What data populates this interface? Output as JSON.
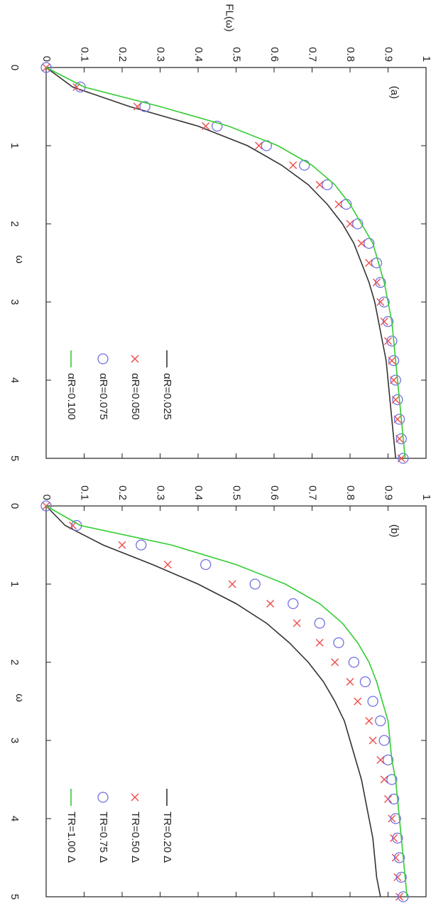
{
  "chart_data": [
    {
      "type": "line",
      "ylabel": "FL(ω)",
      "xlabel": "ω",
      "annotation": "(a)",
      "x": [
        0,
        0.25,
        0.5,
        0.75,
        1,
        1.25,
        1.5,
        1.75,
        2,
        2.25,
        2.5,
        2.75,
        3,
        3.25,
        3.5,
        3.75,
        4,
        4.25,
        4.5,
        4.75,
        5
      ],
      "xlim": [
        0,
        5
      ],
      "ylim": [
        0,
        1
      ],
      "xticks": [
        0,
        1,
        2,
        3,
        4,
        5
      ],
      "yticks": [
        0,
        0.1,
        0.2,
        0.3,
        0.4,
        0.5,
        0.6,
        0.7,
        0.8,
        0.9,
        1
      ],
      "legend": "lower right",
      "series": [
        {
          "name": "αR=0.025",
          "color": "#333333",
          "style": "line",
          "values": [
            0,
            0.07,
            0.22,
            0.4,
            0.53,
            0.62,
            0.69,
            0.74,
            0.78,
            0.81,
            0.83,
            0.85,
            0.865,
            0.875,
            0.885,
            0.895,
            0.9,
            0.905,
            0.91,
            0.915,
            0.92
          ]
        },
        {
          "name": "αR=0.050",
          "color": "#f05050",
          "style": "cross",
          "values": [
            0,
            0.08,
            0.24,
            0.42,
            0.56,
            0.65,
            0.72,
            0.77,
            0.8,
            0.83,
            0.85,
            0.87,
            0.88,
            0.89,
            0.9,
            0.91,
            0.915,
            0.92,
            0.925,
            0.93,
            0.935
          ]
        },
        {
          "name": "αR=0.075",
          "color": "#7070e0",
          "style": "circle",
          "values": [
            0,
            0.09,
            0.26,
            0.45,
            0.58,
            0.68,
            0.74,
            0.79,
            0.82,
            0.85,
            0.87,
            0.88,
            0.89,
            0.9,
            0.91,
            0.915,
            0.92,
            0.925,
            0.93,
            0.935,
            0.94
          ]
        },
        {
          "name": "αR=0.100",
          "color": "#33cc33",
          "style": "line",
          "values": [
            0,
            0.1,
            0.3,
            0.48,
            0.61,
            0.7,
            0.76,
            0.8,
            0.83,
            0.86,
            0.875,
            0.89,
            0.9,
            0.91,
            0.915,
            0.92,
            0.925,
            0.93,
            0.935,
            0.94,
            0.945
          ]
        }
      ]
    },
    {
      "type": "line",
      "xlabel": "ω",
      "annotation": "(b)",
      "x": [
        0,
        0.25,
        0.5,
        0.75,
        1,
        1.25,
        1.5,
        1.75,
        2,
        2.25,
        2.5,
        2.75,
        3,
        3.25,
        3.5,
        3.75,
        4,
        4.25,
        4.5,
        4.75,
        5
      ],
      "xlim": [
        0,
        5
      ],
      "ylim": [
        0,
        1
      ],
      "xticks": [
        0,
        1,
        2,
        3,
        4,
        5
      ],
      "yticks": [
        0,
        0.1,
        0.2,
        0.3,
        0.4,
        0.5,
        0.6,
        0.7,
        0.8,
        0.9,
        1
      ],
      "legend": "lower right",
      "series": [
        {
          "name": "TR=0.20 Δ",
          "color": "#333333",
          "style": "line",
          "values": [
            0,
            0.05,
            0.15,
            0.28,
            0.4,
            0.5,
            0.58,
            0.64,
            0.69,
            0.73,
            0.76,
            0.785,
            0.8,
            0.815,
            0.83,
            0.84,
            0.85,
            0.86,
            0.865,
            0.87,
            0.88
          ]
        },
        {
          "name": "TR=0.50 Δ",
          "color": "#f05050",
          "style": "cross",
          "values": [
            0,
            0.07,
            0.2,
            0.32,
            0.49,
            0.59,
            0.66,
            0.72,
            0.76,
            0.8,
            0.82,
            0.85,
            0.86,
            0.88,
            0.89,
            0.9,
            0.91,
            0.915,
            0.92,
            0.925,
            0.93
          ]
        },
        {
          "name": "TR=0.75 Δ",
          "color": "#7070e0",
          "style": "circle",
          "values": [
            0,
            0.08,
            0.25,
            0.42,
            0.55,
            0.65,
            0.72,
            0.77,
            0.81,
            0.84,
            0.86,
            0.88,
            0.89,
            0.9,
            0.91,
            0.915,
            0.92,
            0.925,
            0.93,
            0.935,
            0.94
          ]
        },
        {
          "name": "TR=1.00 Δ",
          "color": "#33cc33",
          "style": "line",
          "values": [
            0,
            0.09,
            0.33,
            0.5,
            0.63,
            0.72,
            0.78,
            0.82,
            0.85,
            0.87,
            0.885,
            0.9,
            0.905,
            0.91,
            0.92,
            0.925,
            0.93,
            0.935,
            0.94,
            0.945,
            0.95
          ]
        }
      ]
    }
  ]
}
